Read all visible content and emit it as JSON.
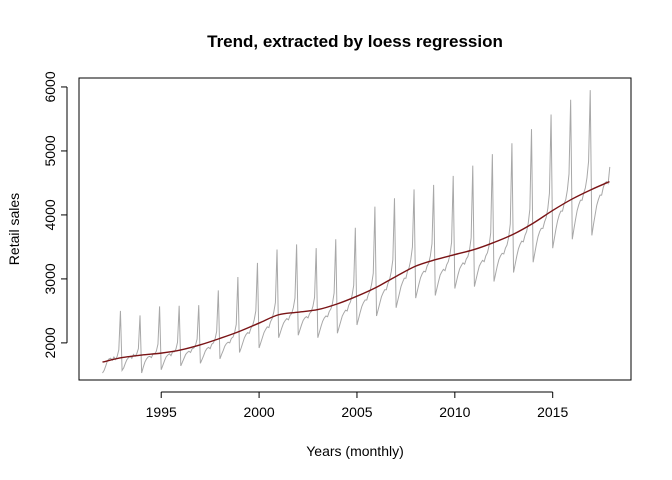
{
  "chart_data": {
    "type": "line",
    "title": "Trend, extracted by loess regression",
    "xlabel": "Years (monthly)",
    "ylabel": "Retail sales",
    "xlim": [
      1990.8,
      2019.0
    ],
    "ylim": [
      1420,
      6140
    ],
    "x_ticks": [
      1995,
      2000,
      2005,
      2010,
      2015
    ],
    "y_ticks": [
      2000,
      3000,
      4000,
      5000,
      6000
    ],
    "grid": false,
    "colors": {
      "raw": "#a8a8a8",
      "trend": "#7a1416"
    },
    "series": [
      {
        "name": "",
        "role": "raw",
        "start_year": 1992,
        "frequency": 12,
        "values": [
          1530,
          1570,
          1640,
          1720,
          1750,
          1760,
          1730,
          1780,
          1740,
          1790,
          1890,
          2500,
          1570,
          1610,
          1680,
          1740,
          1770,
          1790,
          1760,
          1820,
          1790,
          1830,
          1910,
          2430,
          1530,
          1620,
          1700,
          1750,
          1780,
          1790,
          1770,
          1830,
          1830,
          1870,
          1980,
          2570,
          1580,
          1650,
          1720,
          1780,
          1810,
          1830,
          1800,
          1860,
          1860,
          1900,
          2010,
          2580,
          1640,
          1700,
          1760,
          1820,
          1850,
          1870,
          1850,
          1910,
          1920,
          1960,
          2060,
          2590,
          1680,
          1740,
          1800,
          1870,
          1910,
          1930,
          1910,
          1980,
          2000,
          2060,
          2180,
          2820,
          1750,
          1820,
          1880,
          1950,
          1990,
          2010,
          2000,
          2070,
          2090,
          2160,
          2290,
          3030,
          1850,
          1920,
          2000,
          2080,
          2130,
          2160,
          2150,
          2230,
          2270,
          2360,
          2500,
          3250,
          1920,
          2000,
          2080,
          2160,
          2210,
          2250,
          2240,
          2330,
          2380,
          2480,
          2630,
          3460,
          2080,
          2160,
          2240,
          2310,
          2350,
          2380,
          2360,
          2430,
          2460,
          2550,
          2700,
          3540,
          2120,
          2200,
          2280,
          2350,
          2390,
          2410,
          2390,
          2460,
          2490,
          2570,
          2710,
          3480,
          2080,
          2170,
          2260,
          2340,
          2390,
          2420,
          2410,
          2490,
          2530,
          2620,
          2780,
          3620,
          2150,
          2240,
          2330,
          2420,
          2470,
          2510,
          2500,
          2590,
          2640,
          2740,
          2900,
          3800,
          2280,
          2380,
          2480,
          2570,
          2630,
          2670,
          2670,
          2760,
          2810,
          2920,
          3090,
          4130,
          2420,
          2520,
          2620,
          2720,
          2780,
          2830,
          2830,
          2930,
          2990,
          3110,
          3300,
          4260,
          2550,
          2660,
          2770,
          2880,
          2950,
          3010,
          3010,
          3120,
          3180,
          3300,
          3500,
          4400,
          2700,
          2810,
          2920,
          3020,
          3080,
          3120,
          3110,
          3200,
          3250,
          3360,
          3550,
          4470,
          2740,
          2850,
          2960,
          3060,
          3110,
          3150,
          3130,
          3220,
          3270,
          3380,
          3570,
          4610,
          2850,
          2960,
          3070,
          3160,
          3210,
          3250,
          3230,
          3310,
          3350,
          3450,
          3640,
          4770,
          2880,
          2990,
          3100,
          3200,
          3250,
          3290,
          3270,
          3360,
          3410,
          3520,
          3720,
          4950,
          2960,
          3080,
          3200,
          3300,
          3360,
          3400,
          3390,
          3480,
          3530,
          3650,
          3860,
          5120,
          3100,
          3230,
          3360,
          3470,
          3540,
          3590,
          3580,
          3680,
          3740,
          3870,
          4090,
          5340,
          3260,
          3400,
          3540,
          3660,
          3740,
          3790,
          3790,
          3890,
          3960,
          4100,
          4340,
          5570,
          3480,
          3630,
          3780,
          3910,
          4000,
          4060,
          4060,
          4170,
          4240,
          4390,
          4640,
          5800,
          3620,
          3780,
          3930,
          4070,
          4160,
          4230,
          4230,
          4340,
          4420,
          4580,
          4840,
          5950,
          3680,
          3850,
          4000,
          4150,
          4240,
          4310,
          4310,
          4430,
          4500,
          4520,
          4490,
          4750
        ]
      },
      {
        "name": "",
        "role": "trend",
        "x": [
          1992.0,
          1993.0,
          1994.0,
          1995.0,
          1996.0,
          1997.0,
          1998.0,
          1999.0,
          2000.0,
          2001.0,
          2002.0,
          2003.0,
          2004.0,
          2005.0,
          2006.0,
          2007.0,
          2008.0,
          2009.0,
          2010.0,
          2011.0,
          2012.0,
          2013.0,
          2014.0,
          2015.0,
          2016.0,
          2017.0,
          2017.9
        ],
        "values": [
          1700,
          1770,
          1810,
          1840,
          1890,
          1970,
          2070,
          2180,
          2310,
          2440,
          2480,
          2520,
          2610,
          2730,
          2870,
          3040,
          3200,
          3300,
          3380,
          3460,
          3570,
          3700,
          3870,
          4070,
          4250,
          4400,
          4520
        ]
      }
    ]
  }
}
